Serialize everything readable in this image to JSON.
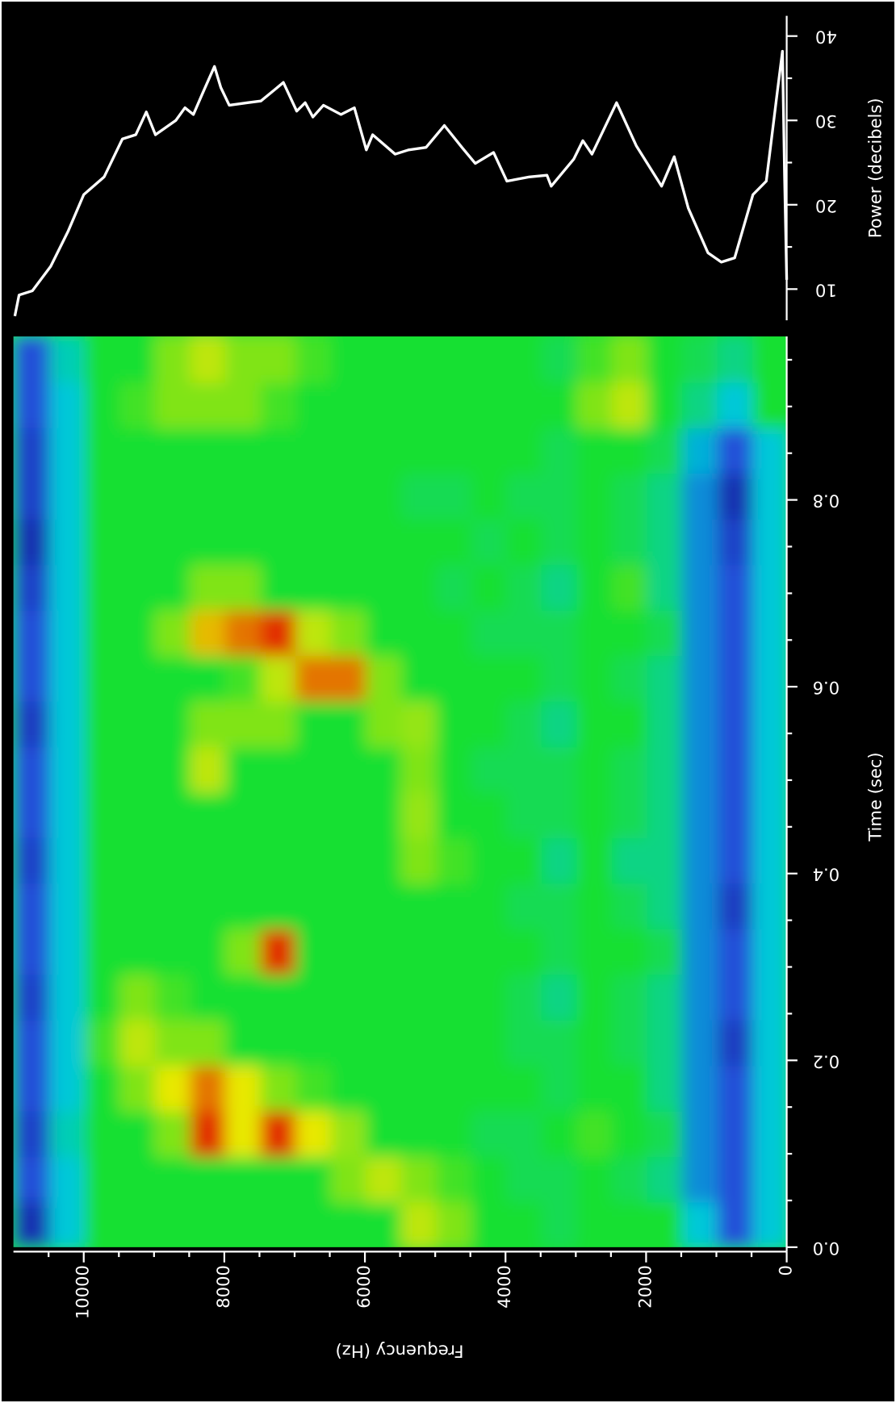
{
  "chart_data": [
    {
      "type": "heatmap",
      "xlabel": "Time (sec)",
      "ylabel": "Frequency (Hz)",
      "xlim": [
        0,
        0.975
      ],
      "ylim": [
        0,
        11000
      ],
      "xticks": [
        {
          "value": 0,
          "label": "0.0"
        },
        0.2,
        0.4,
        0.6,
        0.8
      ],
      "xticks_minor": [
        0.05,
        0.1,
        0.15,
        0.25,
        0.3,
        0.35,
        0.45,
        0.5,
        0.55,
        0.65,
        0.7,
        0.75,
        0.85,
        0.9,
        0.95
      ],
      "yticks": [
        0,
        2000,
        4000,
        6000,
        8000,
        10000
      ],
      "yticks_minor": [
        500,
        1000,
        1500,
        2500,
        3000,
        3500,
        4500,
        5000,
        5500,
        6500,
        7000,
        7500,
        8500,
        9000,
        9500,
        10500
      ],
      "time_bins": [
        0,
        0.04875,
        0.0975,
        0.14625,
        0.195,
        0.24375,
        0.2925,
        0.34125,
        0.39,
        0.43875,
        0.4875,
        0.53625,
        0.585,
        0.63375,
        0.6825,
        0.73125,
        0.78,
        0.82875,
        0.8775,
        0.92625,
        0.975
      ],
      "freq_bins": [
        0,
        500,
        1000,
        1500,
        2000,
        2500,
        3000,
        3500,
        4000,
        4500,
        5000,
        5500,
        6000,
        6500,
        7000,
        7500,
        8000,
        8500,
        9000,
        9500,
        10000,
        10500,
        11000
      ],
      "colormap": [
        "#10108a",
        "#2050d8",
        "#00c8d8",
        "#18e030",
        "#e8e800",
        "#e00000"
      ],
      "z": [
        [
          2,
          2,
          2,
          2,
          2,
          2,
          2,
          2,
          2,
          2,
          2,
          2,
          2,
          2,
          2,
          2,
          2,
          2,
          3,
          3
        ],
        [
          1,
          1,
          1,
          1,
          0.7,
          1,
          1,
          0.7,
          1,
          1,
          1,
          1,
          1,
          1,
          1,
          0.8,
          0.5,
          1,
          2,
          2.5
        ],
        [
          2,
          1.5,
          1.5,
          1.5,
          1.5,
          1.5,
          1.5,
          1.5,
          1.5,
          1.5,
          1.5,
          1.5,
          1.5,
          1.5,
          1.5,
          1.5,
          1.5,
          1.8,
          2.5,
          2.8
        ],
        [
          3,
          2.5,
          2.8,
          2.5,
          2.5,
          2.5,
          2.8,
          2.5,
          2.5,
          2.5,
          2.5,
          2.5,
          2.5,
          2.8,
          2.5,
          2.5,
          2.5,
          2.8,
          3,
          3
        ],
        [
          3,
          2.8,
          3,
          3,
          2.8,
          2.8,
          3,
          2.8,
          2.5,
          2.8,
          2.8,
          3,
          2.8,
          3,
          3.2,
          2.8,
          2.8,
          3,
          3.8,
          3.5
        ],
        [
          3,
          3,
          3.2,
          3,
          3,
          3,
          3,
          3,
          3,
          3,
          3,
          3,
          3,
          3,
          3,
          3,
          3,
          3,
          3.5,
          3.2
        ],
        [
          2.8,
          2.8,
          3,
          2.8,
          2.8,
          2.5,
          2.8,
          2.8,
          2.5,
          2.8,
          2.8,
          2.5,
          2.8,
          2.8,
          2.5,
          2.8,
          2.8,
          2.8,
          3,
          2.8
        ],
        [
          3,
          2.8,
          2.8,
          3,
          2.8,
          2.8,
          3,
          2.8,
          3,
          2.8,
          2.8,
          2.8,
          3,
          2.8,
          2.8,
          3,
          2.8,
          3,
          3,
          3
        ],
        [
          3,
          3,
          2.8,
          3,
          3,
          3,
          3,
          3,
          3,
          3,
          2.8,
          3,
          3,
          2.8,
          3,
          2.8,
          3,
          3,
          3,
          3
        ],
        [
          3.5,
          3.2,
          3,
          3,
          3,
          3,
          3,
          3,
          3.2,
          3,
          3,
          3,
          3,
          3,
          2.8,
          3,
          2.8,
          3,
          3,
          3
        ],
        [
          3.8,
          3.5,
          3,
          3,
          3,
          3,
          3,
          3,
          3.5,
          3.6,
          3.5,
          3.6,
          3,
          3,
          3,
          3,
          2.8,
          3,
          3,
          3
        ],
        [
          3,
          3.8,
          3,
          3,
          3,
          3,
          3,
          3,
          3,
          3,
          3,
          3.5,
          3.5,
          3,
          3,
          3,
          3,
          3,
          3,
          3
        ],
        [
          3,
          3.5,
          3.6,
          3,
          3,
          3,
          3,
          3,
          3,
          3,
          3,
          3,
          4.5,
          3.5,
          3,
          3,
          3,
          3,
          3,
          3
        ],
        [
          3,
          3,
          4,
          3.2,
          3,
          3,
          3,
          3,
          3,
          3,
          3,
          3,
          4.5,
          3.8,
          3,
          3,
          3,
          3,
          3,
          3.2
        ],
        [
          3,
          3,
          4.8,
          3.5,
          3,
          3,
          4.8,
          3,
          3,
          3,
          3,
          3.5,
          3.8,
          4.8,
          3,
          3,
          3,
          3,
          3.2,
          3.5
        ],
        [
          3,
          3,
          4,
          4,
          3,
          3,
          3.5,
          3,
          3,
          3,
          3,
          3.5,
          3.2,
          4.5,
          3.5,
          3,
          3,
          3,
          3.5,
          3.5
        ],
        [
          3,
          3,
          4.8,
          4.5,
          3.5,
          3,
          3,
          3,
          3,
          3,
          3.8,
          3.5,
          3,
          4.2,
          3.5,
          3,
          3,
          3,
          3.5,
          3.8
        ],
        [
          3,
          3,
          3.5,
          4,
          3.5,
          3.2,
          3,
          3,
          3,
          3,
          3,
          3,
          3,
          3.5,
          3,
          3,
          3,
          3,
          3.5,
          3.5
        ],
        [
          3,
          3,
          3,
          3.5,
          3.8,
          3.5,
          3,
          3,
          3,
          3,
          3,
          3,
          3,
          3,
          3,
          3,
          3,
          3,
          3.2,
          3
        ],
        [
          3,
          3,
          3,
          3,
          3.2,
          3,
          3,
          3,
          3,
          3,
          3,
          3,
          3,
          3,
          3,
          3,
          3,
          3,
          3,
          3
        ],
        [
          2,
          2,
          2.2,
          2,
          2,
          2,
          2,
          2,
          2,
          2,
          2,
          2,
          2,
          2,
          2,
          2,
          2,
          2,
          2,
          2.2
        ],
        [
          0.5,
          1,
          0.8,
          1,
          1,
          0.8,
          1,
          1,
          0.8,
          1,
          1,
          0.7,
          1,
          1,
          0.8,
          0.5,
          0.8,
          0.8,
          1,
          1
        ]
      ]
    },
    {
      "type": "line",
      "xlabel": "Power (decibels)",
      "xlim": [
        6.3,
        42.4
      ],
      "ylim": [
        0,
        11000
      ],
      "xticks": [
        10,
        20,
        30,
        40
      ],
      "xticks_minor": [
        15,
        25,
        35
      ],
      "series": [
        {
          "color": "#ffffff",
          "x": [
            6.8,
            9.3,
            9.8,
            12.7,
            16.9,
            21.2,
            23.3,
            27.8,
            28.3,
            31.0,
            28.3,
            30.0,
            31.5,
            30.7,
            33.2,
            36.4,
            33.9,
            31.8,
            32.1,
            32.3,
            33.6,
            34.5,
            31.1,
            32.1,
            30.4,
            31.8,
            30.7,
            31.5,
            26.5,
            28.3,
            26.0,
            26.5,
            26.8,
            29.4,
            26.8,
            24.9,
            26.2,
            22.8,
            23.3,
            23.5,
            22.2,
            25.4,
            27.6,
            26.0,
            32.1,
            27.0,
            22.2,
            25.7,
            19.6,
            14.3,
            13.2,
            13.7,
            21.2,
            22.8,
            33.6,
            38.2,
            23.3,
            11.1
          ],
          "values": [
            10980,
            10920,
            10730,
            10470,
            10220,
            10000,
            9710,
            9450,
            9260,
            9110,
            8980,
            8690,
            8560,
            8440,
            8310,
            8140,
            8050,
            7930,
            7670,
            7480,
            7290,
            7160,
            6970,
            6850,
            6740,
            6590,
            6340,
            6150,
            5980,
            5890,
            5570,
            5380,
            5130,
            4870,
            4620,
            4430,
            4170,
            3980,
            3660,
            3410,
            3350,
            3030,
            2900,
            2770,
            2420,
            2140,
            1780,
            1600,
            1400,
            1120,
            930,
            740,
            480,
            290,
            130,
            60,
            30,
            0
          ]
        }
      ]
    }
  ]
}
